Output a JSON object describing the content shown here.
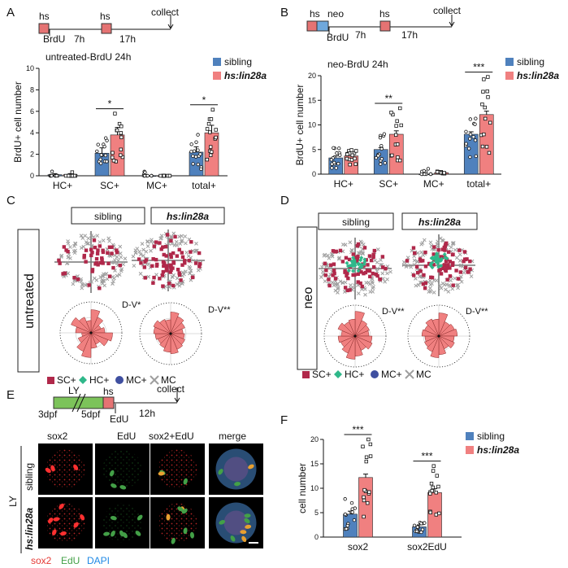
{
  "colors": {
    "sibling": "#4f81bd",
    "lin28a": "#f08080",
    "hs_box": "#e57373",
    "neo_box": "#6fa8dc",
    "ly_box": "#7cc35a",
    "sc_marker": "#b0284a",
    "hc_marker": "#2fb88a",
    "mc_marker": "#3f4fa0",
    "mc_cross": "#9e9e9e",
    "sox2_red": "#e53935",
    "edu_green": "#43a047",
    "dapi_blue": "#1e88e5"
  },
  "panels": {
    "a": {
      "letter": "A",
      "timeline": {
        "hs1": "hs",
        "hs2": "hs",
        "brdu": "BrdU",
        "gap1": "7h",
        "gap2": "17h",
        "end": "collect"
      },
      "title": "untreated-BrdU 24h"
    },
    "b": {
      "letter": "B",
      "timeline": {
        "hs1": "hs",
        "neo": "neo",
        "hs2": "hs",
        "brdu": "BrdU",
        "gap1": "7h",
        "gap2": "17h",
        "end": "collect"
      },
      "title": "neo-BrdU 24h"
    },
    "c": {
      "letter": "C",
      "sibling": "sibling",
      "lin28a": "hs:lin28a",
      "row": "untreated",
      "dv_left": "D-V*",
      "dv_right": "D-V**",
      "legend": [
        "SC+",
        "HC+",
        "MC+",
        "MC"
      ]
    },
    "d": {
      "letter": "D",
      "sibling": "sibling",
      "lin28a": "hs:lin28a",
      "row": "neo",
      "dv_left": "D-V**",
      "dv_right": "D-V**",
      "legend": [
        "SC+",
        "HC+",
        "MC+",
        "MC"
      ]
    },
    "e": {
      "letter": "E",
      "timeline": {
        "ly": "LY",
        "hs": "hs",
        "edu": "EdU",
        "d3": "3dpf",
        "d5": "5dpf",
        "gap": "12h",
        "end": "collect"
      },
      "columns": [
        "sox2",
        "EdU",
        "sox2+EdU",
        "merge"
      ],
      "rows": [
        "sibling",
        "hs:lin28a"
      ],
      "group": "LY",
      "stain_sox2": "sox2",
      "stain_edu": "EdU",
      "stain_dapi": "DAPI"
    },
    "f": {
      "letter": "F"
    }
  },
  "chart_data": [
    {
      "id": "A",
      "type": "bar",
      "title": "untreated-BrdU 24h",
      "ylabel": "BrdU+ cell number",
      "xlabel": "",
      "categories": [
        "HC+",
        "SC+",
        "MC+",
        "total+"
      ],
      "ylim": [
        0,
        10
      ],
      "yticks": [
        0,
        2,
        4,
        6,
        8,
        10
      ],
      "series": [
        {
          "name": "sibling",
          "values": [
            0.1,
            2.1,
            0.0,
            2.2
          ],
          "errors": [
            0.1,
            0.5,
            0.0,
            0.5
          ]
        },
        {
          "name": "hs:lin28a",
          "values": [
            0.1,
            3.8,
            0.0,
            4.0
          ],
          "errors": [
            0.1,
            0.7,
            0.0,
            0.7
          ]
        }
      ],
      "significance": [
        {
          "category": "SC+",
          "label": "*"
        },
        {
          "category": "total+",
          "label": "*"
        }
      ],
      "legend": "top-right"
    },
    {
      "id": "B",
      "type": "bar",
      "title": "neo-BrdU 24h",
      "ylabel": "BrdU+ cell number",
      "xlabel": "",
      "categories": [
        "HC+",
        "SC+",
        "MC+",
        "total+"
      ],
      "ylim": [
        0,
        20
      ],
      "yticks": [
        0,
        5,
        10,
        15,
        20
      ],
      "series": [
        {
          "name": "sibling",
          "values": [
            3.3,
            5.0,
            0.0,
            8.1
          ],
          "errors": [
            0.4,
            0.4,
            0.0,
            0.5
          ]
        },
        {
          "name": "hs:lin28a",
          "values": [
            3.7,
            8.1,
            0.3,
            12.1
          ],
          "errors": [
            0.3,
            0.7,
            0.1,
            0.7
          ]
        }
      ],
      "significance": [
        {
          "category": "SC+",
          "label": "**"
        },
        {
          "category": "total+",
          "label": "***"
        }
      ],
      "legend": "top-right"
    },
    {
      "id": "F",
      "type": "bar",
      "ylabel": "cell number",
      "xlabel": "",
      "categories": [
        "sox2",
        "sox2EdU"
      ],
      "ylim": [
        0,
        20
      ],
      "yticks": [
        0,
        5,
        10,
        15,
        20
      ],
      "series": [
        {
          "name": "sibling",
          "values": [
            4.7,
            2.1
          ],
          "errors": [
            0.6,
            0.4
          ]
        },
        {
          "name": "hs:lin28a",
          "values": [
            12.2,
            9.1
          ],
          "errors": [
            0.7,
            0.8
          ]
        }
      ],
      "significance": [
        {
          "category": "sox2",
          "label": "***"
        },
        {
          "category": "sox2EdU",
          "label": "***"
        }
      ],
      "legend": "top-right"
    }
  ]
}
